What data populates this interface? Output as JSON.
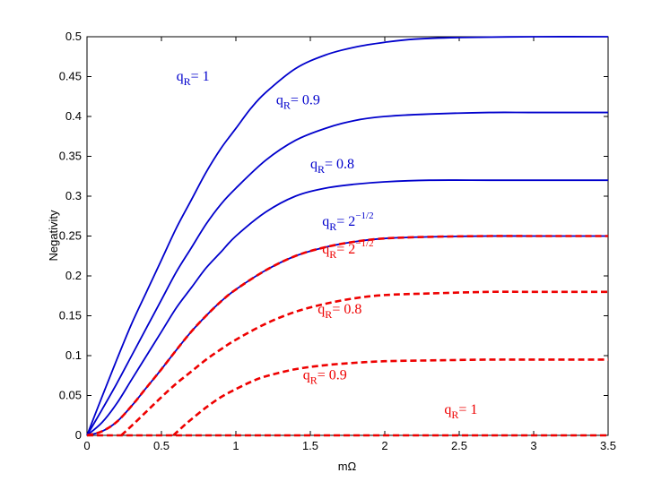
{
  "chart_data": {
    "type": "line",
    "title": "",
    "xlabel": "mΩ",
    "ylabel": "Negativity",
    "xlim": [
      0,
      3.5
    ],
    "ylim": [
      0,
      0.5
    ],
    "grid": false,
    "xticks": [
      "0",
      "0.5",
      "1",
      "1.5",
      "2",
      "2.5",
      "3",
      "3.5"
    ],
    "yticks": [
      "0",
      "0.05",
      "0.1",
      "0.15",
      "0.2",
      "0.25",
      "0.3",
      "0.35",
      "0.4",
      "0.45",
      "0.5"
    ],
    "series": [
      {
        "color": "#0000cc",
        "style": "solid",
        "x": [
          0,
          0.1,
          0.2,
          0.3,
          0.4,
          0.5,
          0.6,
          0.7,
          0.8,
          0.9,
          1.0,
          1.1,
          1.2,
          1.4,
          1.6,
          1.8,
          2.0,
          2.2,
          2.5,
          3.0,
          3.5
        ],
        "y": [
          0,
          0.048,
          0.095,
          0.14,
          0.18,
          0.22,
          0.26,
          0.295,
          0.33,
          0.36,
          0.385,
          0.41,
          0.43,
          0.46,
          0.477,
          0.487,
          0.493,
          0.497,
          0.499,
          0.5,
          0.5
        ]
      },
      {
        "color": "#0000cc",
        "style": "solid",
        "x": [
          0,
          0.1,
          0.2,
          0.3,
          0.4,
          0.5,
          0.6,
          0.7,
          0.8,
          0.9,
          1.0,
          1.2,
          1.4,
          1.6,
          1.8,
          2.0,
          2.3,
          2.7,
          3.0,
          3.5
        ],
        "y": [
          0,
          0.032,
          0.065,
          0.1,
          0.135,
          0.17,
          0.205,
          0.235,
          0.265,
          0.29,
          0.31,
          0.345,
          0.37,
          0.385,
          0.395,
          0.4,
          0.403,
          0.405,
          0.405,
          0.405
        ]
      },
      {
        "color": "#0000cc",
        "style": "solid",
        "x": [
          0,
          0.1,
          0.2,
          0.3,
          0.4,
          0.5,
          0.6,
          0.7,
          0.8,
          0.9,
          1.0,
          1.2,
          1.4,
          1.6,
          1.8,
          2.0,
          2.3,
          2.7,
          3.0,
          3.5
        ],
        "y": [
          0,
          0.016,
          0.04,
          0.07,
          0.1,
          0.13,
          0.16,
          0.185,
          0.21,
          0.23,
          0.25,
          0.28,
          0.3,
          0.31,
          0.315,
          0.318,
          0.32,
          0.32,
          0.32,
          0.32
        ]
      },
      {
        "color": "#0000cc",
        "style": "solid",
        "x": [
          0,
          0.1,
          0.2,
          0.3,
          0.4,
          0.5,
          0.6,
          0.7,
          0.8,
          0.9,
          1.0,
          1.2,
          1.4,
          1.6,
          1.8,
          2.0,
          2.3,
          2.7,
          3.0,
          3.5
        ],
        "y": [
          0,
          0.005,
          0.017,
          0.037,
          0.06,
          0.083,
          0.107,
          0.13,
          0.15,
          0.168,
          0.183,
          0.207,
          0.225,
          0.236,
          0.243,
          0.247,
          0.249,
          0.25,
          0.25,
          0.25
        ]
      },
      {
        "color": "#ee0000",
        "style": "dashed",
        "x": [
          0,
          0.1,
          0.2,
          0.3,
          0.4,
          0.5,
          0.6,
          0.7,
          0.8,
          0.9,
          1.0,
          1.2,
          1.4,
          1.6,
          1.8,
          2.0,
          2.3,
          2.7,
          3.0,
          3.5
        ],
        "y": [
          0,
          0.005,
          0.017,
          0.037,
          0.06,
          0.083,
          0.107,
          0.13,
          0.15,
          0.168,
          0.183,
          0.207,
          0.225,
          0.236,
          0.243,
          0.247,
          0.249,
          0.25,
          0.25,
          0.25
        ]
      },
      {
        "color": "#ee0000",
        "style": "dashed",
        "x": [
          0.23,
          0.3,
          0.4,
          0.5,
          0.6,
          0.7,
          0.8,
          0.9,
          1.0,
          1.2,
          1.4,
          1.6,
          1.8,
          2.0,
          2.3,
          2.7,
          3.0,
          3.5
        ],
        "y": [
          0,
          0.012,
          0.03,
          0.048,
          0.065,
          0.08,
          0.095,
          0.108,
          0.12,
          0.14,
          0.155,
          0.165,
          0.172,
          0.176,
          0.178,
          0.18,
          0.18,
          0.18
        ]
      },
      {
        "color": "#ee0000",
        "style": "dashed",
        "x": [
          0.58,
          0.65,
          0.7,
          0.8,
          0.9,
          1.0,
          1.1,
          1.2,
          1.4,
          1.6,
          1.8,
          2.0,
          2.3,
          2.7,
          3.0,
          3.5
        ],
        "y": [
          0,
          0.012,
          0.02,
          0.035,
          0.048,
          0.058,
          0.067,
          0.074,
          0.083,
          0.088,
          0.091,
          0.093,
          0.094,
          0.095,
          0.095,
          0.095
        ]
      },
      {
        "color": "#ee0000",
        "style": "dashed",
        "x": [
          0,
          3.5
        ],
        "y": [
          0,
          0
        ]
      }
    ],
    "annotations": [
      {
        "color": "#0000cc",
        "x": 0.6,
        "y": 0.445,
        "base": "q",
        "sub": "R",
        "sup": "",
        "rest": "= 1"
      },
      {
        "color": "#0000cc",
        "x": 1.27,
        "y": 0.415,
        "base": "q",
        "sub": "R",
        "sup": "",
        "rest": "= 0.9"
      },
      {
        "color": "#0000cc",
        "x": 1.5,
        "y": 0.335,
        "base": "q",
        "sub": "R",
        "sup": "",
        "rest": "= 0.8"
      },
      {
        "color": "#0000cc",
        "x": 1.58,
        "y": 0.263,
        "base": "q",
        "sub": "R",
        "sup": "−1/2",
        "rest": "= 2"
      },
      {
        "color": "#ee0000",
        "x": 1.58,
        "y": 0.228,
        "base": "q",
        "sub": "R",
        "sup": "−1/2",
        "rest": "= 2"
      },
      {
        "color": "#ee0000",
        "x": 1.55,
        "y": 0.153,
        "base": "q",
        "sub": "R",
        "sup": "",
        "rest": "= 0.8"
      },
      {
        "color": "#ee0000",
        "x": 1.45,
        "y": 0.07,
        "base": "q",
        "sub": "R",
        "sup": "",
        "rest": "= 0.9"
      },
      {
        "color": "#ee0000",
        "x": 2.4,
        "y": 0.027,
        "base": "q",
        "sub": "R",
        "sup": "",
        "rest": "= 1"
      }
    ]
  }
}
